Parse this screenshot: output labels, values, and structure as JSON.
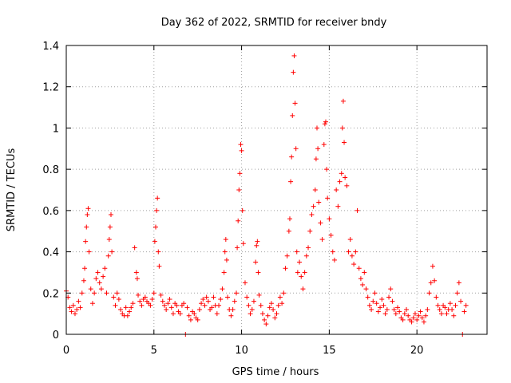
{
  "chart_data": {
    "type": "scatter",
    "title": "Day 362 of 2022, SRMTID for receiver bndy",
    "xlabel": "GPS time / hours",
    "ylabel": "SRMTID / TECUs",
    "xlim": [
      0,
      24
    ],
    "ylim": [
      0,
      1.4
    ],
    "xticks": [
      0,
      5,
      10,
      15,
      20
    ],
    "xtick_labels": [
      "0",
      "5",
      "10",
      "15",
      "20"
    ],
    "yticks": [
      0,
      0.2,
      0.4,
      0.6,
      0.8,
      1.0,
      1.2,
      1.4
    ],
    "ytick_labels": [
      "0",
      "0.2",
      "0.4",
      "0.6",
      "0.8",
      "1",
      "1.2",
      "1.4"
    ],
    "grid": true,
    "marker": "plus",
    "color": "#ff0000",
    "series": [
      {
        "name": "SRMTID",
        "points": [
          [
            0.0,
            0.21
          ],
          [
            0.1,
            0.18
          ],
          [
            0.2,
            0.13
          ],
          [
            0.3,
            0.11
          ],
          [
            0.4,
            0.14
          ],
          [
            0.5,
            0.1
          ],
          [
            0.6,
            0.12
          ],
          [
            0.7,
            0.16
          ],
          [
            0.8,
            0.13
          ],
          [
            0.9,
            0.2
          ],
          [
            1.0,
            0.26
          ],
          [
            1.05,
            0.32
          ],
          [
            1.1,
            0.45
          ],
          [
            1.15,
            0.52
          ],
          [
            1.2,
            0.58
          ],
          [
            1.25,
            0.61
          ],
          [
            1.3,
            0.4
          ],
          [
            1.4,
            0.22
          ],
          [
            1.5,
            0.15
          ],
          [
            1.6,
            0.2
          ],
          [
            1.7,
            0.27
          ],
          [
            1.8,
            0.3
          ],
          [
            1.9,
            0.25
          ],
          [
            2.0,
            0.22
          ],
          [
            2.1,
            0.28
          ],
          [
            2.2,
            0.32
          ],
          [
            2.3,
            0.2
          ],
          [
            2.4,
            0.38
          ],
          [
            2.45,
            0.46
          ],
          [
            2.5,
            0.52
          ],
          [
            2.55,
            0.58
          ],
          [
            2.6,
            0.4
          ],
          [
            2.7,
            0.18
          ],
          [
            2.8,
            0.14
          ],
          [
            2.9,
            0.2
          ],
          [
            3.0,
            0.17
          ],
          [
            3.1,
            0.12
          ],
          [
            3.2,
            0.1
          ],
          [
            3.3,
            0.09
          ],
          [
            3.4,
            0.13
          ],
          [
            3.5,
            0.09
          ],
          [
            3.6,
            0.11
          ],
          [
            3.7,
            0.13
          ],
          [
            3.8,
            0.15
          ],
          [
            3.9,
            0.42
          ],
          [
            4.0,
            0.3
          ],
          [
            4.05,
            0.27
          ],
          [
            4.1,
            0.19
          ],
          [
            4.2,
            0.16
          ],
          [
            4.3,
            0.14
          ],
          [
            4.4,
            0.17
          ],
          [
            4.5,
            0.18
          ],
          [
            4.6,
            0.16
          ],
          [
            4.7,
            0.15
          ],
          [
            4.8,
            0.14
          ],
          [
            4.9,
            0.17
          ],
          [
            5.0,
            0.2
          ],
          [
            5.05,
            0.45
          ],
          [
            5.1,
            0.52
          ],
          [
            5.15,
            0.6
          ],
          [
            5.2,
            0.66
          ],
          [
            5.25,
            0.4
          ],
          [
            5.3,
            0.33
          ],
          [
            5.4,
            0.19
          ],
          [
            5.5,
            0.16
          ],
          [
            5.6,
            0.14
          ],
          [
            5.7,
            0.12
          ],
          [
            5.8,
            0.15
          ],
          [
            5.9,
            0.17
          ],
          [
            6.0,
            0.13
          ],
          [
            6.1,
            0.1
          ],
          [
            6.2,
            0.15
          ],
          [
            6.3,
            0.14
          ],
          [
            6.4,
            0.11
          ],
          [
            6.5,
            0.1
          ],
          [
            6.6,
            0.14
          ],
          [
            6.7,
            0.15
          ],
          [
            6.8,
            0.0
          ],
          [
            6.9,
            0.13
          ],
          [
            7.0,
            0.09
          ],
          [
            7.1,
            0.07
          ],
          [
            7.2,
            0.11
          ],
          [
            7.3,
            0.1
          ],
          [
            7.4,
            0.08
          ],
          [
            7.5,
            0.07
          ],
          [
            7.6,
            0.12
          ],
          [
            7.7,
            0.15
          ],
          [
            7.8,
            0.17
          ],
          [
            7.9,
            0.14
          ],
          [
            8.0,
            0.18
          ],
          [
            8.1,
            0.16
          ],
          [
            8.2,
            0.12
          ],
          [
            8.3,
            0.13
          ],
          [
            8.4,
            0.18
          ],
          [
            8.5,
            0.14
          ],
          [
            8.6,
            0.1
          ],
          [
            8.7,
            0.14
          ],
          [
            8.8,
            0.17
          ],
          [
            8.9,
            0.22
          ],
          [
            9.0,
            0.3
          ],
          [
            9.05,
            0.4
          ],
          [
            9.1,
            0.46
          ],
          [
            9.15,
            0.36
          ],
          [
            9.2,
            0.18
          ],
          [
            9.3,
            0.12
          ],
          [
            9.4,
            0.09
          ],
          [
            9.5,
            0.12
          ],
          [
            9.6,
            0.16
          ],
          [
            9.7,
            0.2
          ],
          [
            9.75,
            0.42
          ],
          [
            9.8,
            0.55
          ],
          [
            9.85,
            0.7
          ],
          [
            9.9,
            0.78
          ],
          [
            9.95,
            0.92
          ],
          [
            10.0,
            0.89
          ],
          [
            10.05,
            0.6
          ],
          [
            10.1,
            0.44
          ],
          [
            10.2,
            0.25
          ],
          [
            10.3,
            0.18
          ],
          [
            10.4,
            0.14
          ],
          [
            10.5,
            0.1
          ],
          [
            10.6,
            0.12
          ],
          [
            10.7,
            0.16
          ],
          [
            10.8,
            0.35
          ],
          [
            10.85,
            0.43
          ],
          [
            10.9,
            0.45
          ],
          [
            10.95,
            0.3
          ],
          [
            11.0,
            0.19
          ],
          [
            11.1,
            0.14
          ],
          [
            11.2,
            0.1
          ],
          [
            11.3,
            0.07
          ],
          [
            11.4,
            0.05
          ],
          [
            11.5,
            0.09
          ],
          [
            11.6,
            0.13
          ],
          [
            11.7,
            0.15
          ],
          [
            11.8,
            0.12
          ],
          [
            11.9,
            0.08
          ],
          [
            12.0,
            0.1
          ],
          [
            12.1,
            0.14
          ],
          [
            12.2,
            0.18
          ],
          [
            12.3,
            0.15
          ],
          [
            12.4,
            0.2
          ],
          [
            12.5,
            0.32
          ],
          [
            12.6,
            0.38
          ],
          [
            12.7,
            0.5
          ],
          [
            12.75,
            0.56
          ],
          [
            12.8,
            0.74
          ],
          [
            12.85,
            0.86
          ],
          [
            12.9,
            1.06
          ],
          [
            12.95,
            1.27
          ],
          [
            13.0,
            1.35
          ],
          [
            13.05,
            1.12
          ],
          [
            13.1,
            0.9
          ],
          [
            13.15,
            0.4
          ],
          [
            13.2,
            0.3
          ],
          [
            13.3,
            0.35
          ],
          [
            13.4,
            0.28
          ],
          [
            13.5,
            0.22
          ],
          [
            13.6,
            0.3
          ],
          [
            13.7,
            0.38
          ],
          [
            13.8,
            0.42
          ],
          [
            13.9,
            0.5
          ],
          [
            14.0,
            0.58
          ],
          [
            14.1,
            0.62
          ],
          [
            14.2,
            0.7
          ],
          [
            14.25,
            0.85
          ],
          [
            14.3,
            1.0
          ],
          [
            14.35,
            0.9
          ],
          [
            14.4,
            0.64
          ],
          [
            14.5,
            0.54
          ],
          [
            14.6,
            0.46
          ],
          [
            14.7,
            0.92
          ],
          [
            14.75,
            1.02
          ],
          [
            14.8,
            1.03
          ],
          [
            14.85,
            0.8
          ],
          [
            14.9,
            0.66
          ],
          [
            15.0,
            0.56
          ],
          [
            15.1,
            0.48
          ],
          [
            15.2,
            0.4
          ],
          [
            15.3,
            0.36
          ],
          [
            15.4,
            0.7
          ],
          [
            15.5,
            0.62
          ],
          [
            15.6,
            0.74
          ],
          [
            15.7,
            0.78
          ],
          [
            15.75,
            1.0
          ],
          [
            15.8,
            1.13
          ],
          [
            15.85,
            0.93
          ],
          [
            15.9,
            0.76
          ],
          [
            16.0,
            0.72
          ],
          [
            16.1,
            0.4
          ],
          [
            16.2,
            0.46
          ],
          [
            16.3,
            0.38
          ],
          [
            16.4,
            0.34
          ],
          [
            16.5,
            0.4
          ],
          [
            16.6,
            0.6
          ],
          [
            16.7,
            0.32
          ],
          [
            16.8,
            0.27
          ],
          [
            16.9,
            0.24
          ],
          [
            17.0,
            0.3
          ],
          [
            17.1,
            0.22
          ],
          [
            17.2,
            0.18
          ],
          [
            17.3,
            0.14
          ],
          [
            17.4,
            0.12
          ],
          [
            17.5,
            0.16
          ],
          [
            17.6,
            0.2
          ],
          [
            17.7,
            0.15
          ],
          [
            17.8,
            0.11
          ],
          [
            17.9,
            0.13
          ],
          [
            18.0,
            0.17
          ],
          [
            18.1,
            0.14
          ],
          [
            18.2,
            0.1
          ],
          [
            18.3,
            0.12
          ],
          [
            18.4,
            0.18
          ],
          [
            18.5,
            0.22
          ],
          [
            18.6,
            0.16
          ],
          [
            18.7,
            0.12
          ],
          [
            18.8,
            0.1
          ],
          [
            18.9,
            0.13
          ],
          [
            19.0,
            0.11
          ],
          [
            19.1,
            0.08
          ],
          [
            19.2,
            0.07
          ],
          [
            19.3,
            0.1
          ],
          [
            19.4,
            0.12
          ],
          [
            19.5,
            0.09
          ],
          [
            19.6,
            0.07
          ],
          [
            19.7,
            0.06
          ],
          [
            19.8,
            0.08
          ],
          [
            19.9,
            0.1
          ],
          [
            20.0,
            0.07
          ],
          [
            20.1,
            0.09
          ],
          [
            20.2,
            0.11
          ],
          [
            20.3,
            0.08
          ],
          [
            20.4,
            0.06
          ],
          [
            20.5,
            0.09
          ],
          [
            20.6,
            0.12
          ],
          [
            20.7,
            0.2
          ],
          [
            20.8,
            0.25
          ],
          [
            20.9,
            0.33
          ],
          [
            21.0,
            0.26
          ],
          [
            21.1,
            0.18
          ],
          [
            21.2,
            0.14
          ],
          [
            21.3,
            0.12
          ],
          [
            21.4,
            0.1
          ],
          [
            21.5,
            0.14
          ],
          [
            21.6,
            0.13
          ],
          [
            21.7,
            0.1
          ],
          [
            21.8,
            0.12
          ],
          [
            21.9,
            0.15
          ],
          [
            22.0,
            0.12
          ],
          [
            22.1,
            0.09
          ],
          [
            22.2,
            0.14
          ],
          [
            22.3,
            0.2
          ],
          [
            22.4,
            0.25
          ],
          [
            22.5,
            0.16
          ],
          [
            22.6,
            0.0
          ],
          [
            22.7,
            0.11
          ],
          [
            22.8,
            0.14
          ]
        ]
      }
    ]
  }
}
